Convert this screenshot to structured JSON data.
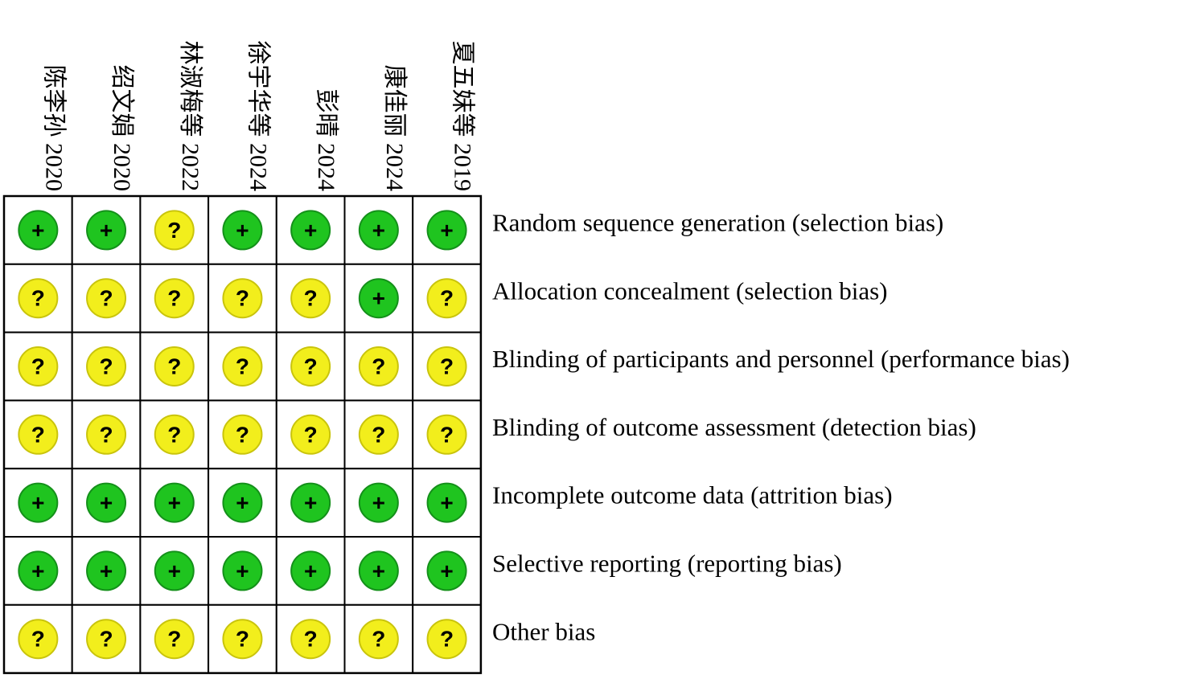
{
  "studies": [
    "陈李孙 2020",
    "绍文娟 2020",
    "林淑梅等 2022",
    "徐宇华等 2024",
    "彭晴 2024",
    "康佳丽 2024",
    "夏五妹等 2019"
  ],
  "domains": [
    {
      "label": "Random sequence generation (selection bias)",
      "judgments": [
        "+",
        "+",
        "?",
        "+",
        "+",
        "+",
        "+"
      ]
    },
    {
      "label": "Allocation concealment (selection bias)",
      "judgments": [
        "?",
        "?",
        "?",
        "?",
        "?",
        "+",
        "?"
      ]
    },
    {
      "label": "Blinding of participants and personnel (performance bias)",
      "judgments": [
        "?",
        "?",
        "?",
        "?",
        "?",
        "?",
        "?"
      ]
    },
    {
      "label": "Blinding of outcome assessment (detection bias)",
      "judgments": [
        "?",
        "?",
        "?",
        "?",
        "?",
        "?",
        "?"
      ]
    },
    {
      "label": "Incomplete outcome data (attrition bias)",
      "judgments": [
        "+",
        "+",
        "+",
        "+",
        "+",
        "+",
        "+"
      ]
    },
    {
      "label": "Selective reporting (reporting bias)",
      "judgments": [
        "+",
        "+",
        "+",
        "+",
        "+",
        "+",
        "+"
      ]
    },
    {
      "label": "Other bias",
      "judgments": [
        "?",
        "?",
        "?",
        "?",
        "?",
        "?",
        "?"
      ]
    }
  ]
}
